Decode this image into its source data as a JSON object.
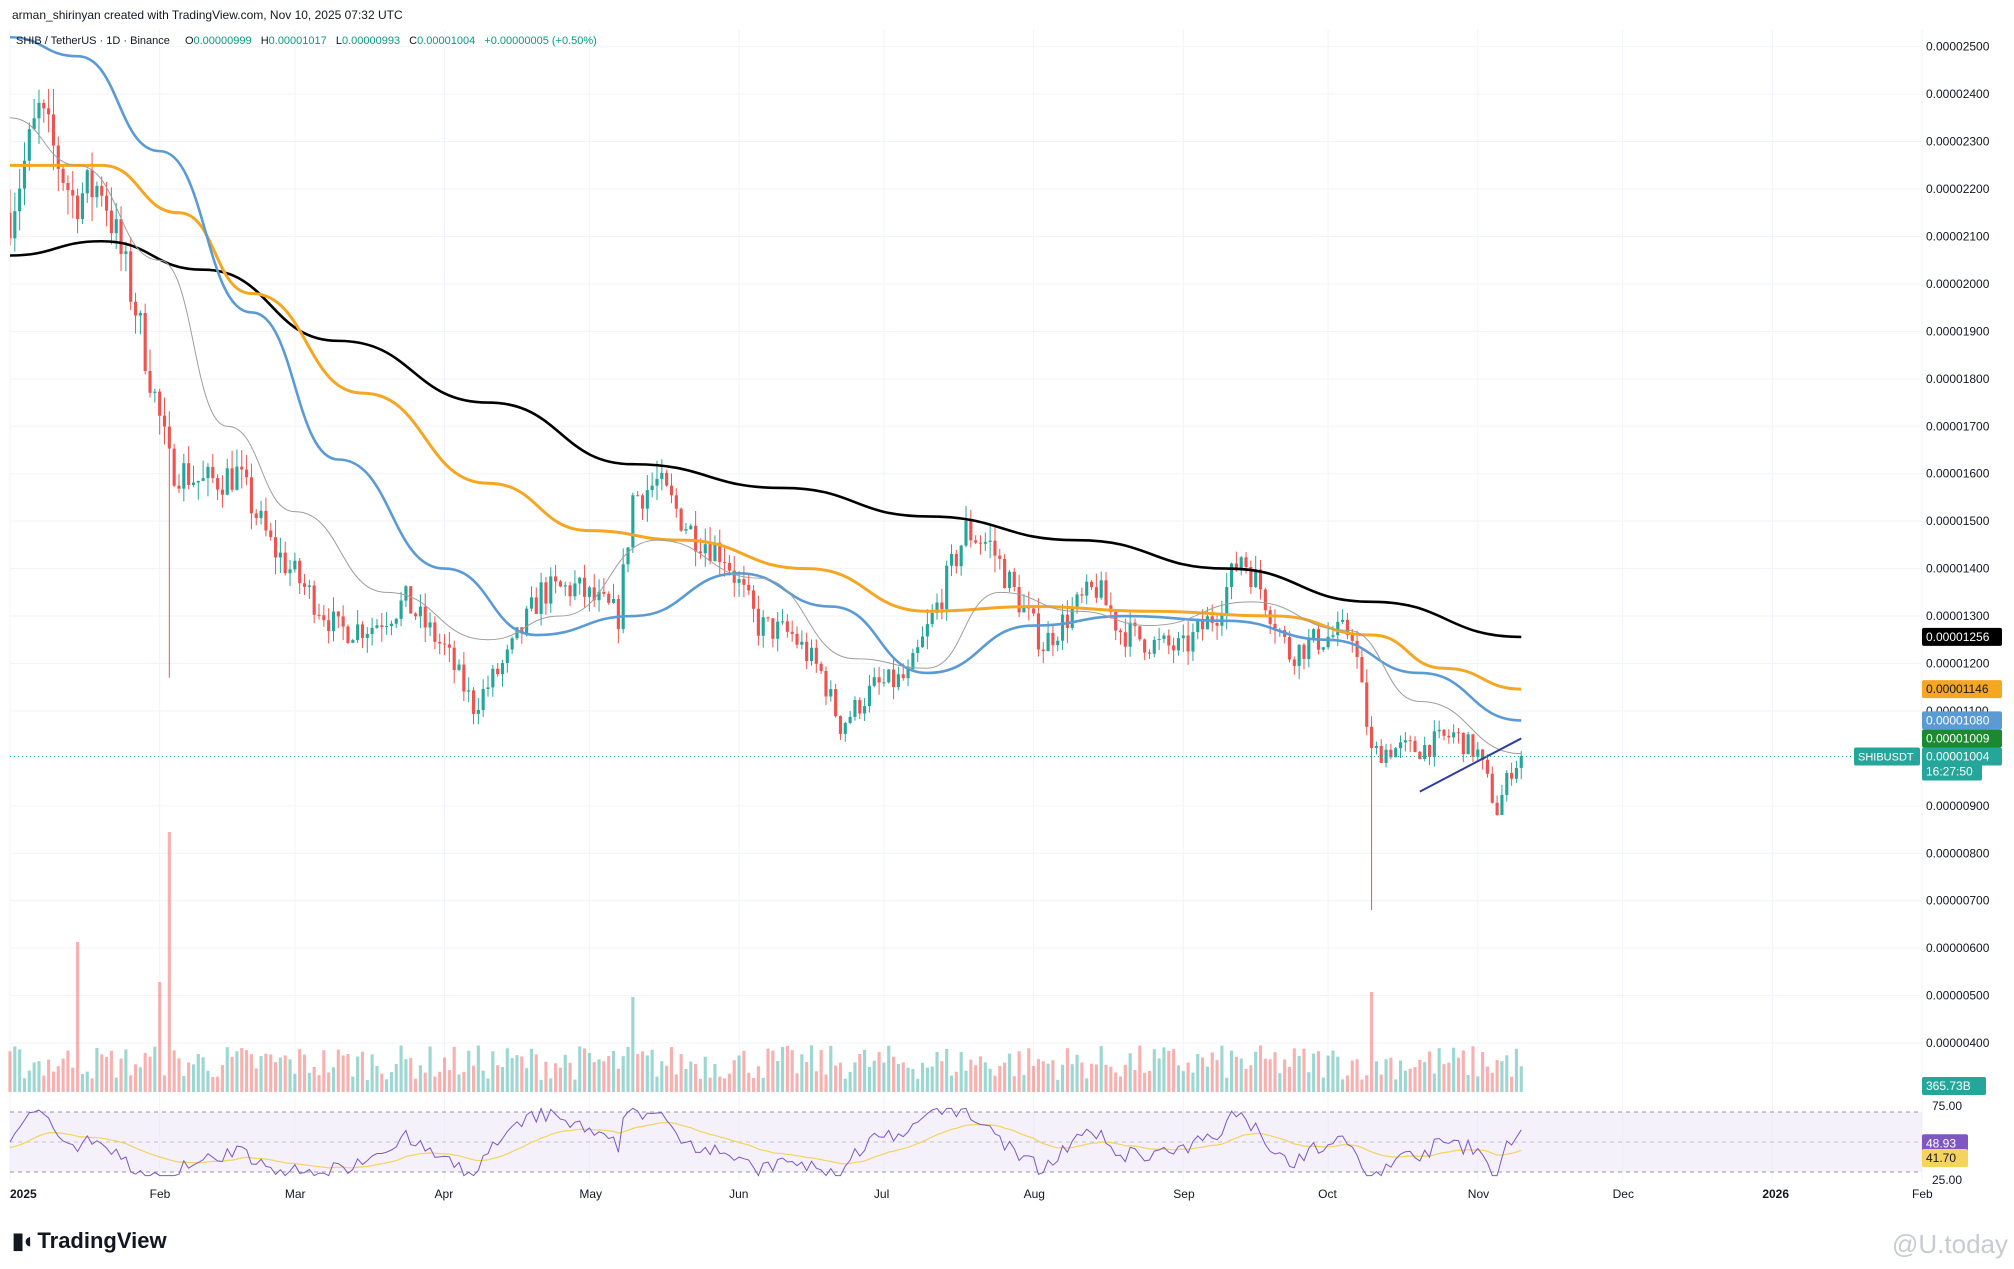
{
  "header": {
    "credit": "arman_shirinyan created with TradingView.com, Nov 10, 2025 07:32 UTC",
    "symbol": "SHIB / TetherUS · 1D · Binance",
    "o_label": "O",
    "o": "0.00000999",
    "h_label": "H",
    "h": "0.00001017",
    "l_label": "L",
    "l": "0.00000993",
    "c_label": "C",
    "c": "0.00001004",
    "change": "+0.00000005 (+0.50%)"
  },
  "brand": {
    "name": "TradingView",
    "watermark": "@U.today"
  },
  "colors": {
    "up": "#26a69a",
    "down": "#ef5350",
    "ma200": "#000000",
    "ma100": "#f5a623",
    "ma50": "#5b9bd5",
    "ma20": "#9e9e9e",
    "rsi": "#7e57c2",
    "rsi_ma": "#f4d35e",
    "trendline": "#2f3e9e",
    "grid": "#f0f3fa"
  },
  "chart_data": {
    "type": "candlestick",
    "symbol": "SHIBUSDT",
    "price_axis": {
      "ticks": [
        "0.00002500",
        "0.00002400",
        "0.00002300",
        "0.00002200",
        "0.00002100",
        "0.00002000",
        "0.00001900",
        "0.00001800",
        "0.00001700",
        "0.00001600",
        "0.00001500",
        "0.00001400",
        "0.00001300",
        "0.00001200",
        "0.00001100",
        "0.00000900",
        "0.00000800",
        "0.00000700",
        "0.00000600",
        "0.00000500",
        "0.00000400"
      ],
      "range": [
        3.6e-06,
        2.51e-05
      ]
    },
    "time_axis": {
      "labels": [
        "2025",
        "Feb",
        "Mar",
        "Apr",
        "May",
        "Jun",
        "Jul",
        "Aug",
        "Sep",
        "Oct",
        "Nov",
        "Dec",
        "2026",
        "Feb"
      ],
      "label_values": [
        "2025-01-01",
        "2025-02-01",
        "2025-03-01",
        "2025-04-01",
        "2025-05-01",
        "2025-06-01",
        "2025-07-01",
        "2025-08-01",
        "2025-09-01",
        "2025-10-01",
        "2025-11-01",
        "2025-12-01",
        "2026-01-01",
        "2026-02-01"
      ],
      "range": [
        "2025-01-01",
        "2026-02-01"
      ]
    },
    "last_date": "2025-11-10",
    "price_path": [
      [
        "2025-01-01",
        2.15e-05
      ],
      [
        "2025-01-07",
        2.36e-05
      ],
      [
        "2025-01-14",
        2.18e-05
      ],
      [
        "2025-01-20",
        2.21e-05
      ],
      [
        "2025-01-27",
        1.95e-05
      ],
      [
        "2025-02-03",
        1.62e-05
      ],
      [
        "2025-02-10",
        1.58e-05
      ],
      [
        "2025-02-17",
        1.6e-05
      ],
      [
        "2025-02-24",
        1.45e-05
      ],
      [
        "2025-03-03",
        1.36e-05
      ],
      [
        "2025-03-10",
        1.27e-05
      ],
      [
        "2025-03-17",
        1.28e-05
      ],
      [
        "2025-03-24",
        1.33e-05
      ],
      [
        "2025-04-01",
        1.23e-05
      ],
      [
        "2025-04-07",
        1.11e-05
      ],
      [
        "2025-04-14",
        1.21e-05
      ],
      [
        "2025-04-21",
        1.35e-05
      ],
      [
        "2025-04-28",
        1.36e-05
      ],
      [
        "2025-05-07",
        1.3e-05
      ],
      [
        "2025-05-10",
        1.55e-05
      ],
      [
        "2025-05-15",
        1.58e-05
      ],
      [
        "2025-05-22",
        1.48e-05
      ],
      [
        "2025-05-29",
        1.43e-05
      ],
      [
        "2025-06-05",
        1.28e-05
      ],
      [
        "2025-06-12",
        1.26e-05
      ],
      [
        "2025-06-18",
        1.18e-05
      ],
      [
        "2025-06-22",
        1.07e-05
      ],
      [
        "2025-06-29",
        1.15e-05
      ],
      [
        "2025-07-06",
        1.17e-05
      ],
      [
        "2025-07-12",
        1.32e-05
      ],
      [
        "2025-07-18",
        1.48e-05
      ],
      [
        "2025-07-23",
        1.45e-05
      ],
      [
        "2025-07-28",
        1.35e-05
      ],
      [
        "2025-08-03",
        1.24e-05
      ],
      [
        "2025-08-10",
        1.32e-05
      ],
      [
        "2025-08-14",
        1.36e-05
      ],
      [
        "2025-08-19",
        1.27e-05
      ],
      [
        "2025-08-26",
        1.24e-05
      ],
      [
        "2025-09-01",
        1.23e-05
      ],
      [
        "2025-09-08",
        1.31e-05
      ],
      [
        "2025-09-13",
        1.43e-05
      ],
      [
        "2025-09-17",
        1.36e-05
      ],
      [
        "2025-09-23",
        1.22e-05
      ],
      [
        "2025-09-29",
        1.25e-05
      ],
      [
        "2025-10-06",
        1.27e-05
      ],
      [
        "2025-10-10",
        1.01e-05
      ],
      [
        "2025-10-14",
        1.02e-05
      ],
      [
        "2025-10-20",
        1.02e-05
      ],
      [
        "2025-10-27",
        1.05e-05
      ],
      [
        "2025-11-01",
        1.01e-05
      ],
      [
        "2025-11-05",
        8.9e-06
      ],
      [
        "2025-11-08",
        9.8e-06
      ],
      [
        "2025-11-10",
        1.004e-05
      ]
    ],
    "moving_averages": [
      {
        "name": "MA200",
        "points": [
          [
            "2025-01-01",
            2.06e-05
          ],
          [
            "2025-01-20",
            2.09e-05
          ],
          [
            "2025-02-10",
            2.03e-05
          ],
          [
            "2025-03-10",
            1.88e-05
          ],
          [
            "2025-04-10",
            1.75e-05
          ],
          [
            "2025-05-10",
            1.62e-05
          ],
          [
            "2025-06-10",
            1.57e-05
          ],
          [
            "2025-07-10",
            1.51e-05
          ],
          [
            "2025-08-10",
            1.46e-05
          ],
          [
            "2025-09-10",
            1.4e-05
          ],
          [
            "2025-10-10",
            1.33e-05
          ],
          [
            "2025-11-10",
            1.256e-05
          ]
        ]
      },
      {
        "name": "MA100",
        "points": [
          [
            "2025-01-01",
            2.25e-05
          ],
          [
            "2025-01-20",
            2.25e-05
          ],
          [
            "2025-02-05",
            2.15e-05
          ],
          [
            "2025-02-20",
            1.98e-05
          ],
          [
            "2025-03-15",
            1.77e-05
          ],
          [
            "2025-04-10",
            1.58e-05
          ],
          [
            "2025-05-01",
            1.48e-05
          ],
          [
            "2025-05-20",
            1.46e-05
          ],
          [
            "2025-06-15",
            1.4e-05
          ],
          [
            "2025-07-10",
            1.31e-05
          ],
          [
            "2025-08-01",
            1.32e-05
          ],
          [
            "2025-08-25",
            1.31e-05
          ],
          [
            "2025-09-20",
            1.3e-05
          ],
          [
            "2025-10-10",
            1.26e-05
          ],
          [
            "2025-10-25",
            1.19e-05
          ],
          [
            "2025-11-10",
            1.146e-05
          ]
        ]
      },
      {
        "name": "MA50",
        "points": [
          [
            "2025-01-01",
            2.52e-05
          ],
          [
            "2025-01-15",
            2.48e-05
          ],
          [
            "2025-02-01",
            2.28e-05
          ],
          [
            "2025-02-20",
            1.94e-05
          ],
          [
            "2025-03-10",
            1.63e-05
          ],
          [
            "2025-04-01",
            1.4e-05
          ],
          [
            "2025-04-20",
            1.26e-05
          ],
          [
            "2025-05-10",
            1.3e-05
          ],
          [
            "2025-06-01",
            1.39e-05
          ],
          [
            "2025-06-20",
            1.32e-05
          ],
          [
            "2025-07-10",
            1.18e-05
          ],
          [
            "2025-08-01",
            1.28e-05
          ],
          [
            "2025-08-20",
            1.3e-05
          ],
          [
            "2025-09-10",
            1.29e-05
          ],
          [
            "2025-10-01",
            1.25e-05
          ],
          [
            "2025-10-20",
            1.18e-05
          ],
          [
            "2025-11-10",
            1.08e-05
          ]
        ]
      },
      {
        "name": "MA20",
        "points": [
          [
            "2025-01-01",
            2.35e-05
          ],
          [
            "2025-01-15",
            2.25e-05
          ],
          [
            "2025-02-01",
            2.05e-05
          ],
          [
            "2025-02-15",
            1.7e-05
          ],
          [
            "2025-03-01",
            1.52e-05
          ],
          [
            "2025-03-20",
            1.35e-05
          ],
          [
            "2025-04-10",
            1.25e-05
          ],
          [
            "2025-04-25",
            1.3e-05
          ],
          [
            "2025-05-15",
            1.46e-05
          ],
          [
            "2025-06-05",
            1.38e-05
          ],
          [
            "2025-06-25",
            1.21e-05
          ],
          [
            "2025-07-10",
            1.19e-05
          ],
          [
            "2025-07-25",
            1.35e-05
          ],
          [
            "2025-08-10",
            1.31e-05
          ],
          [
            "2025-08-25",
            1.28e-05
          ],
          [
            "2025-09-15",
            1.33e-05
          ],
          [
            "2025-10-05",
            1.27e-05
          ],
          [
            "2025-10-20",
            1.12e-05
          ],
          [
            "2025-11-10",
            1.01e-05
          ]
        ]
      }
    ],
    "trendline": [
      [
        "2025-10-20",
        9.3e-06
      ],
      [
        "2025-11-10",
        1.042e-05
      ]
    ],
    "price_labels": [
      {
        "name": "MA200",
        "value": "0.00001256"
      },
      {
        "name": "MA100",
        "value": "0.00001146"
      },
      {
        "name": "MA50",
        "value": "0.00001080"
      },
      {
        "name": "MA20",
        "value": "0.00001009"
      },
      {
        "name": "last",
        "value": "0.00001004",
        "symbol": "SHIBUSDT",
        "countdown": "16:27:50"
      }
    ],
    "volume_label": "365.73B",
    "rsi": {
      "levels": [
        "75.00",
        "25.00"
      ],
      "levels_values": [
        75,
        25
      ],
      "value_label": "48.93",
      "ma_label": "41.70",
      "last": 48.93,
      "ma_last": 41.7
    }
  }
}
